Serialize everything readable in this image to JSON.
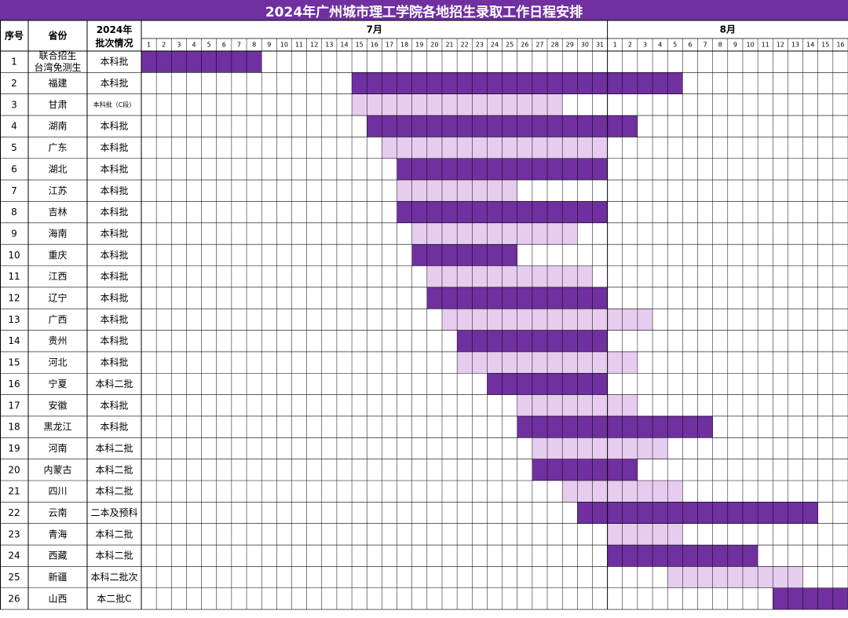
{
  "title": "2024年广州城市理工学院各地招生录取工作日程安排",
  "headers": {
    "no": "序号",
    "province": "省份",
    "batch_line1": "2024年",
    "batch_line2": "批次情况"
  },
  "colors": {
    "title_bg": "#7030A0",
    "dark": "#7030A0",
    "light": "#E6CCEF",
    "grid": "#000000"
  },
  "chart_data": {
    "type": "gantt",
    "months": [
      {
        "label": "7月",
        "days": 31
      },
      {
        "label": "8月",
        "days": 16
      }
    ],
    "rows": [
      {
        "no": "1",
        "province": [
          "联合招生",
          "台湾免测生"
        ],
        "batch": "本科批",
        "start": "7-1",
        "end": "7-8",
        "shade": "dark"
      },
      {
        "no": "2",
        "province": [
          "福建"
        ],
        "batch": "本科批",
        "start": "7-15",
        "end": "8-5",
        "shade": "dark"
      },
      {
        "no": "3",
        "province": [
          "甘肃"
        ],
        "batch": "本科批（C段）",
        "start": "7-15",
        "end": "7-28",
        "shade": "light"
      },
      {
        "no": "4",
        "province": [
          "湖南"
        ],
        "batch": "本科批",
        "start": "7-16",
        "end": "8-2",
        "shade": "dark"
      },
      {
        "no": "5",
        "province": [
          "广东"
        ],
        "batch": "本科批",
        "start": "7-17",
        "end": "7-31",
        "shade": "light"
      },
      {
        "no": "6",
        "province": [
          "湖北"
        ],
        "batch": "本科批",
        "start": "7-18",
        "end": "7-31",
        "shade": "dark"
      },
      {
        "no": "7",
        "province": [
          "江苏"
        ],
        "batch": "本科批",
        "start": "7-18",
        "end": "7-25",
        "shade": "light"
      },
      {
        "no": "8",
        "province": [
          "吉林"
        ],
        "batch": "本科批",
        "start": "7-18",
        "end": "7-31",
        "shade": "dark"
      },
      {
        "no": "9",
        "province": [
          "海南"
        ],
        "batch": "本科批",
        "start": "7-19",
        "end": "7-29",
        "shade": "light"
      },
      {
        "no": "10",
        "province": [
          "重庆"
        ],
        "batch": "本科批",
        "start": "7-19",
        "end": "7-25",
        "shade": "dark"
      },
      {
        "no": "11",
        "province": [
          "江西"
        ],
        "batch": "本科批",
        "start": "7-20",
        "end": "7-30",
        "shade": "light"
      },
      {
        "no": "12",
        "province": [
          "辽宁"
        ],
        "batch": "本科批",
        "start": "7-20",
        "end": "7-31",
        "shade": "dark"
      },
      {
        "no": "13",
        "province": [
          "广西"
        ],
        "batch": "本科批",
        "start": "7-21",
        "end": "8-3",
        "shade": "light"
      },
      {
        "no": "14",
        "province": [
          "贵州"
        ],
        "batch": "本科批",
        "start": "7-22",
        "end": "7-31",
        "shade": "dark"
      },
      {
        "no": "15",
        "province": [
          "河北"
        ],
        "batch": "本科批",
        "start": "7-22",
        "end": "8-2",
        "shade": "light"
      },
      {
        "no": "16",
        "province": [
          "宁夏"
        ],
        "batch": "本科二批",
        "start": "7-24",
        "end": "7-31",
        "shade": "dark"
      },
      {
        "no": "17",
        "province": [
          "安徽"
        ],
        "batch": "本科批",
        "start": "7-26",
        "end": "8-2",
        "shade": "light"
      },
      {
        "no": "18",
        "province": [
          "黑龙江"
        ],
        "batch": "本科批",
        "start": "7-26",
        "end": "8-7",
        "shade": "dark"
      },
      {
        "no": "19",
        "province": [
          "河南"
        ],
        "batch": "本科二批",
        "start": "7-27",
        "end": "8-4",
        "shade": "light"
      },
      {
        "no": "20",
        "province": [
          "内蒙古"
        ],
        "batch": "本科二批",
        "start": "7-27",
        "end": "8-2",
        "shade": "dark"
      },
      {
        "no": "21",
        "province": [
          "四川"
        ],
        "batch": "本科二批",
        "start": "7-29",
        "end": "8-5",
        "shade": "light"
      },
      {
        "no": "22",
        "province": [
          "云南"
        ],
        "batch": "二本及预科",
        "start": "7-30",
        "end": "8-14",
        "shade": "dark"
      },
      {
        "no": "23",
        "province": [
          "青海"
        ],
        "batch": "本科二批",
        "start": "8-1",
        "end": "8-5",
        "shade": "light"
      },
      {
        "no": "24",
        "province": [
          "西藏"
        ],
        "batch": "本科二批",
        "start": "8-1",
        "end": "8-10",
        "shade": "dark"
      },
      {
        "no": "25",
        "province": [
          "新疆"
        ],
        "batch": "本科二批次",
        "start": "8-5",
        "end": "8-13",
        "shade": "light"
      },
      {
        "no": "26",
        "province": [
          "山西"
        ],
        "batch": "本二批C",
        "start": "8-12",
        "end": "8-16",
        "shade": "dark"
      }
    ]
  }
}
